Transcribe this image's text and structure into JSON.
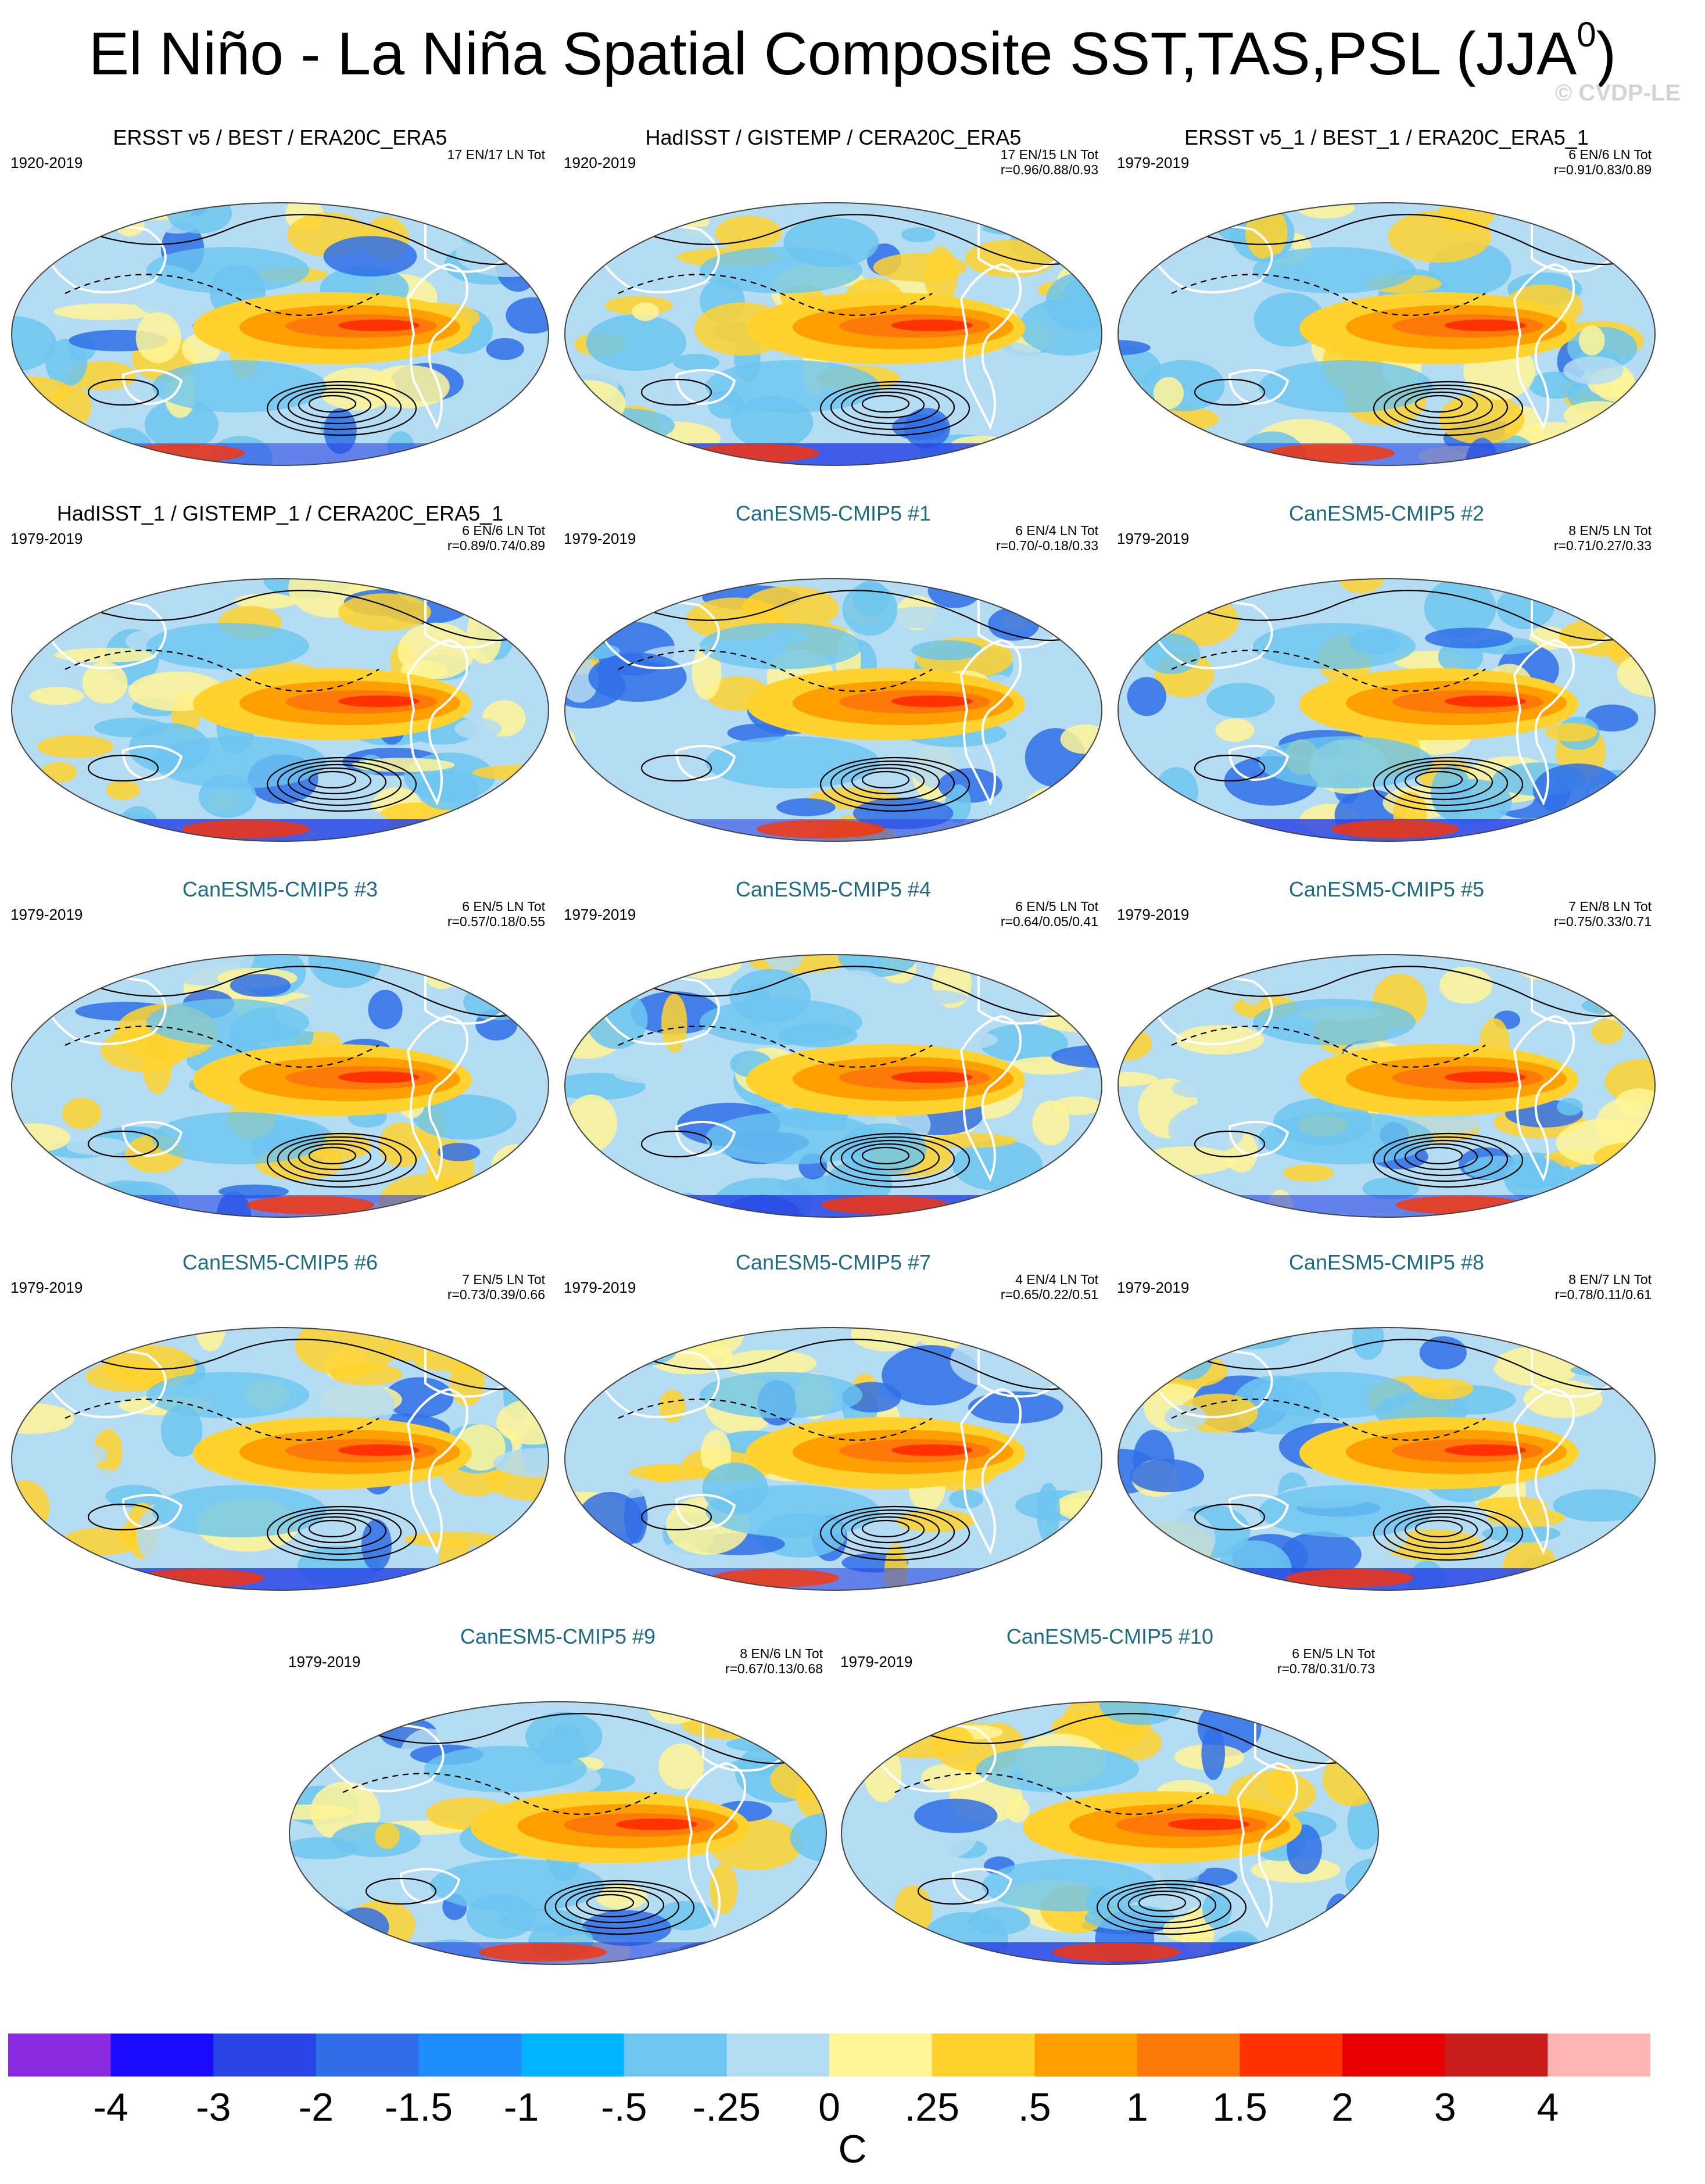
{
  "figure": {
    "title": "El Niño - La Niña Spatial Composite SST,TAS,PSL (JJA",
    "title_superscript": "0",
    "title_close": ")",
    "watermark": "© CVDP-LE"
  },
  "panels": [
    {
      "title": "ERSST v5 / BEST / ERA20C_ERA5",
      "kind": "obs",
      "period": "1920-2019",
      "stats_line1": "17 EN/17 LN Tot",
      "stats_line2": ""
    },
    {
      "title": "HadISST / GISTEMP / CERA20C_ERA5",
      "kind": "obs",
      "period": "1920-2019",
      "stats_line1": "17 EN/15 LN Tot",
      "stats_line2": "r=0.96/0.88/0.93"
    },
    {
      "title": "ERSST v5_1 / BEST_1 / ERA20C_ERA5_1",
      "kind": "obs",
      "period": "1979-2019",
      "stats_line1": "6 EN/6 LN Tot",
      "stats_line2": "r=0.91/0.83/0.89"
    },
    {
      "title": "HadISST_1 / GISTEMP_1 / CERA20C_ERA5_1",
      "kind": "obs",
      "period": "1979-2019",
      "stats_line1": "6 EN/6 LN Tot",
      "stats_line2": "r=0.89/0.74/0.89"
    },
    {
      "title": "CanESM5-CMIP5 #1",
      "kind": "model",
      "period": "1979-2019",
      "stats_line1": "6 EN/4 LN Tot",
      "stats_line2": "r=0.70/-0.18/0.33"
    },
    {
      "title": "CanESM5-CMIP5 #2",
      "kind": "model",
      "period": "1979-2019",
      "stats_line1": "8 EN/5 LN Tot",
      "stats_line2": "r=0.71/0.27/0.33"
    },
    {
      "title": "CanESM5-CMIP5 #3",
      "kind": "model",
      "period": "1979-2019",
      "stats_line1": "6 EN/5 LN Tot",
      "stats_line2": "r=0.57/0.18/0.55"
    },
    {
      "title": "CanESM5-CMIP5 #4",
      "kind": "model",
      "period": "1979-2019",
      "stats_line1": "6 EN/5 LN Tot",
      "stats_line2": "r=0.64/0.05/0.41"
    },
    {
      "title": "CanESM5-CMIP5 #5",
      "kind": "model",
      "period": "1979-2019",
      "stats_line1": "7 EN/8 LN Tot",
      "stats_line2": "r=0.75/0.33/0.71"
    },
    {
      "title": "CanESM5-CMIP5 #6",
      "kind": "model",
      "period": "1979-2019",
      "stats_line1": "7 EN/5 LN Tot",
      "stats_line2": "r=0.73/0.39/0.66"
    },
    {
      "title": "CanESM5-CMIP5 #7",
      "kind": "model",
      "period": "1979-2019",
      "stats_line1": "4 EN/4 LN Tot",
      "stats_line2": "r=0.65/0.22/0.51"
    },
    {
      "title": "CanESM5-CMIP5 #8",
      "kind": "model",
      "period": "1979-2019",
      "stats_line1": "8 EN/7 LN Tot",
      "stats_line2": "r=0.78/0.11/0.61"
    },
    {
      "title": "CanESM5-CMIP5 #9",
      "kind": "model",
      "period": "1979-2019",
      "stats_line1": "8 EN/6 LN Tot",
      "stats_line2": "r=0.67/0.13/0.68"
    },
    {
      "title": "CanESM5-CMIP5 #10",
      "kind": "model",
      "period": "1979-2019",
      "stats_line1": "6 EN/5 LN Tot",
      "stats_line2": "r=0.78/0.31/0.73"
    }
  ],
  "colorbar": {
    "unit": "C",
    "tick_labels": [
      "-4",
      "-3",
      "-2",
      "-1.5",
      "-1",
      "-.5",
      "-.25",
      "0",
      ".25",
      ".5",
      "1",
      "1.5",
      "2",
      "3",
      "4"
    ],
    "colors": [
      "#8a2be2",
      "#1a0dff",
      "#2a46e6",
      "#2f6ee6",
      "#1e8cff",
      "#00b4ff",
      "#6cc6f0",
      "#b4dcf2",
      "#fff596",
      "#ffd22e",
      "#ffa000",
      "#ff780a",
      "#ff3200",
      "#e60000",
      "#c81e1e",
      "#ffb4b4"
    ]
  }
}
